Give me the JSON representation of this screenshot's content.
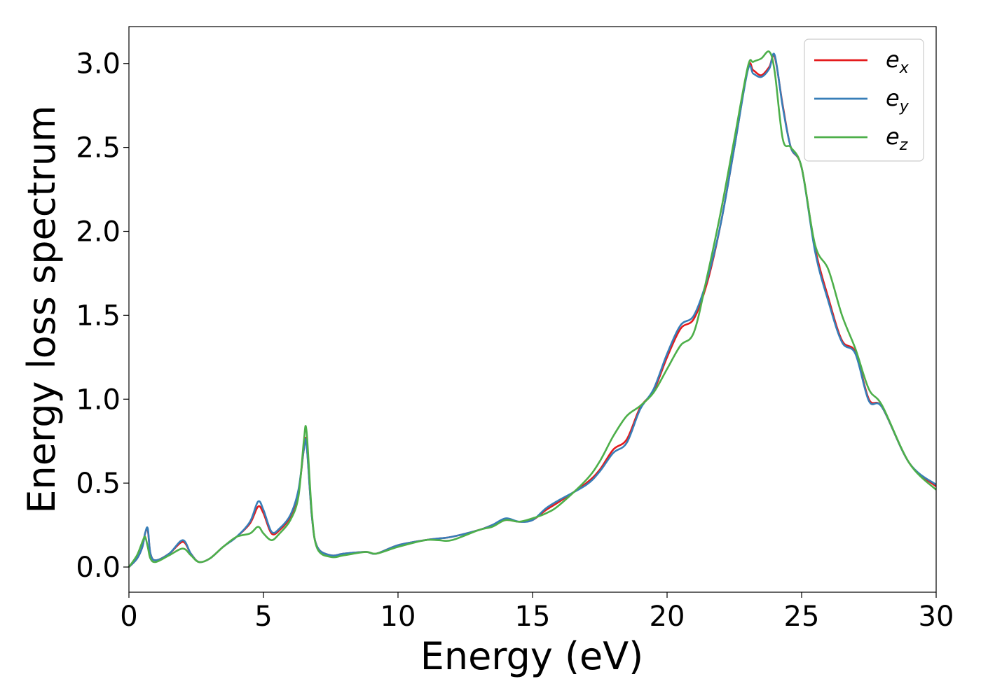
{
  "chart_data": {
    "type": "line",
    "xlabel": "Energy (eV)",
    "ylabel": "Energy loss spectrum",
    "xlim": [
      0,
      30
    ],
    "ylim": [
      -0.15,
      3.22
    ],
    "xticks": [
      "0",
      "5",
      "10",
      "15",
      "20",
      "25",
      "30"
    ],
    "yticks": [
      "0.0",
      "0.5",
      "1.0",
      "1.5",
      "2.0",
      "2.5",
      "3.0"
    ],
    "grid": false,
    "legend_position": "top-right",
    "series": [
      {
        "name": "e_x",
        "label_base": "e",
        "label_sub": "x",
        "color": "#e41a1c",
        "x": [
          0,
          0.3,
          0.5,
          0.6,
          0.7,
          0.8,
          1.0,
          1.5,
          2.0,
          2.3,
          2.6,
          3.0,
          3.5,
          4.0,
          4.5,
          4.8,
          5.0,
          5.3,
          5.6,
          6.0,
          6.3,
          6.5,
          6.6,
          6.8,
          7.0,
          7.5,
          8.0,
          8.8,
          9.2,
          10,
          11,
          11.5,
          12,
          13,
          13.5,
          14,
          14.5,
          15,
          15.5,
          16,
          17,
          17.5,
          18,
          18.5,
          19,
          19.5,
          20,
          20.5,
          21,
          21.5,
          22,
          22.5,
          23,
          23.2,
          23.5,
          23.8,
          24.0,
          24.3,
          24.6,
          25,
          25.5,
          26,
          26.5,
          27,
          27.5,
          28,
          29,
          30
        ],
        "y": [
          0,
          0.05,
          0.12,
          0.2,
          0.22,
          0.08,
          0.04,
          0.08,
          0.15,
          0.08,
          0.03,
          0.05,
          0.12,
          0.18,
          0.26,
          0.36,
          0.32,
          0.2,
          0.22,
          0.3,
          0.45,
          0.7,
          0.74,
          0.3,
          0.12,
          0.07,
          0.08,
          0.09,
          0.08,
          0.13,
          0.16,
          0.17,
          0.18,
          0.22,
          0.25,
          0.28,
          0.27,
          0.28,
          0.34,
          0.39,
          0.5,
          0.58,
          0.7,
          0.76,
          0.95,
          1.05,
          1.25,
          1.42,
          1.48,
          1.7,
          2.05,
          2.5,
          2.97,
          2.96,
          2.93,
          2.98,
          3.04,
          2.75,
          2.5,
          2.38,
          1.9,
          1.6,
          1.35,
          1.28,
          1.0,
          0.95,
          0.62,
          0.48
        ]
      },
      {
        "name": "e_y",
        "label_base": "e",
        "label_sub": "y",
        "color": "#377eb8",
        "x": [
          0,
          0.3,
          0.5,
          0.6,
          0.7,
          0.8,
          1.0,
          1.5,
          2.0,
          2.3,
          2.6,
          3.0,
          3.5,
          4.0,
          4.5,
          4.8,
          5.0,
          5.3,
          5.6,
          6.0,
          6.3,
          6.5,
          6.6,
          6.8,
          7.0,
          7.5,
          8.0,
          8.8,
          9.2,
          10,
          11,
          11.5,
          12,
          13,
          13.5,
          14,
          14.5,
          15,
          15.5,
          16,
          17,
          17.5,
          18,
          18.5,
          19,
          19.5,
          20,
          20.5,
          21,
          21.5,
          22,
          22.5,
          23,
          23.2,
          23.5,
          23.8,
          24.0,
          24.3,
          24.6,
          25,
          25.5,
          26,
          26.5,
          27,
          27.5,
          28,
          29,
          30
        ],
        "y": [
          0,
          0.05,
          0.12,
          0.2,
          0.23,
          0.08,
          0.04,
          0.08,
          0.16,
          0.08,
          0.03,
          0.05,
          0.12,
          0.18,
          0.27,
          0.39,
          0.34,
          0.21,
          0.23,
          0.31,
          0.46,
          0.7,
          0.73,
          0.3,
          0.12,
          0.07,
          0.08,
          0.09,
          0.08,
          0.13,
          0.16,
          0.17,
          0.18,
          0.22,
          0.25,
          0.29,
          0.27,
          0.28,
          0.35,
          0.4,
          0.49,
          0.57,
          0.68,
          0.74,
          0.94,
          1.06,
          1.27,
          1.44,
          1.5,
          1.72,
          2.05,
          2.5,
          2.96,
          2.94,
          2.92,
          2.97,
          3.05,
          2.74,
          2.5,
          2.38,
          1.88,
          1.58,
          1.34,
          1.27,
          0.99,
          0.95,
          0.62,
          0.49
        ]
      },
      {
        "name": "e_z",
        "label_base": "e",
        "label_sub": "z",
        "color": "#4daf4a",
        "x": [
          0,
          0.3,
          0.5,
          0.6,
          0.7,
          0.8,
          1.0,
          1.5,
          2.0,
          2.3,
          2.6,
          3.0,
          3.5,
          4.0,
          4.5,
          4.8,
          5.0,
          5.3,
          5.6,
          6.0,
          6.3,
          6.5,
          6.6,
          6.8,
          7.0,
          7.5,
          8.0,
          8.8,
          9.2,
          10,
          11,
          11.5,
          12,
          13,
          13.5,
          14,
          14.5,
          15,
          15.5,
          16,
          17,
          17.5,
          18,
          18.5,
          19,
          19.5,
          20,
          20.5,
          21,
          21.5,
          22,
          22.5,
          23,
          23.2,
          23.5,
          23.8,
          24.0,
          24.3,
          24.6,
          25,
          25.5,
          26,
          26.5,
          27,
          27.5,
          28,
          29,
          30
        ],
        "y": [
          0,
          0.07,
          0.15,
          0.18,
          0.12,
          0.05,
          0.03,
          0.07,
          0.11,
          0.07,
          0.03,
          0.05,
          0.12,
          0.18,
          0.2,
          0.24,
          0.2,
          0.16,
          0.2,
          0.28,
          0.42,
          0.75,
          0.81,
          0.32,
          0.11,
          0.06,
          0.07,
          0.09,
          0.08,
          0.12,
          0.16,
          0.16,
          0.16,
          0.22,
          0.24,
          0.28,
          0.27,
          0.29,
          0.32,
          0.37,
          0.52,
          0.63,
          0.78,
          0.9,
          0.96,
          1.04,
          1.18,
          1.32,
          1.4,
          1.74,
          2.12,
          2.55,
          2.98,
          3.01,
          3.03,
          3.07,
          2.95,
          2.55,
          2.5,
          2.38,
          1.92,
          1.77,
          1.5,
          1.3,
          1.06,
          0.96,
          0.62,
          0.46
        ]
      }
    ]
  }
}
